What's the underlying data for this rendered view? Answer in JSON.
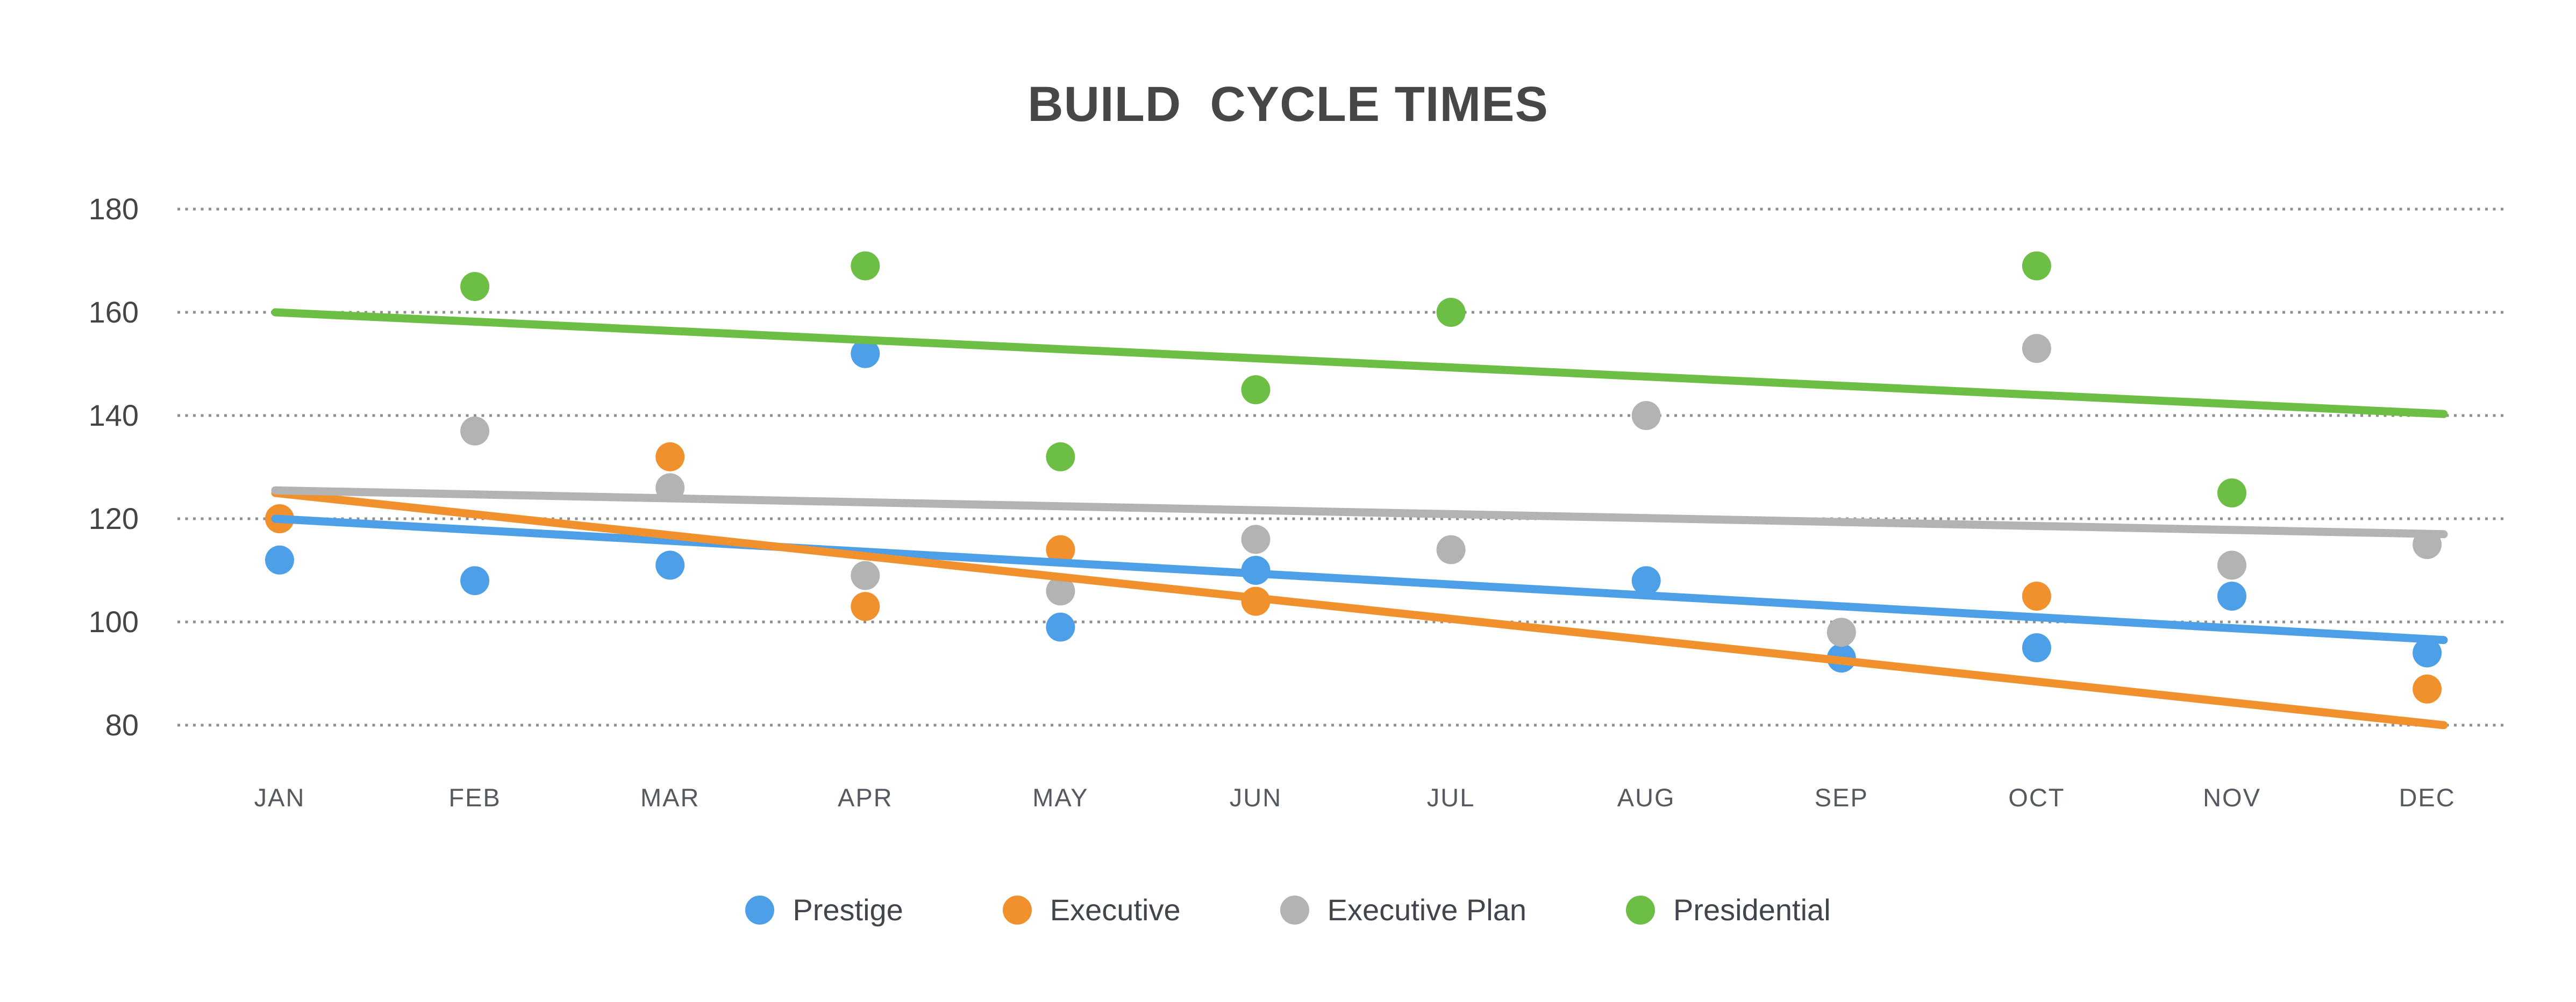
{
  "title": "BUILD  CYCLE TIMES",
  "chart_data": {
    "type": "scatter",
    "title": "BUILD  CYCLE TIMES",
    "xlabel": "",
    "ylabel": "",
    "x": [
      "JAN",
      "FEB",
      "MAR",
      "APR",
      "MAY",
      "JUN",
      "JUL",
      "AUG",
      "SEP",
      "OCT",
      "NOV",
      "DEC"
    ],
    "yticks": [
      180,
      160,
      140,
      120,
      100,
      80
    ],
    "ylim": [
      80,
      180
    ],
    "grid": "horizontal-dotted",
    "legend_position": "bottom",
    "series": [
      {
        "name": "Prestige",
        "color": "#4DA0E8",
        "points": [
          112,
          108,
          111,
          152,
          99,
          110,
          null,
          108,
          93,
          95,
          105,
          94
        ],
        "trendline": {
          "start": 120,
          "end": 96.5
        }
      },
      {
        "name": "Executive",
        "color": "#F0912D",
        "points": [
          120,
          null,
          132,
          103,
          114,
          104,
          null,
          null,
          null,
          105,
          null,
          87
        ],
        "trendline": {
          "start": 125,
          "end": 80
        }
      },
      {
        "name": "Executive Plan",
        "color": "#B3B3B3",
        "points": [
          null,
          137,
          126,
          109,
          106,
          116,
          114,
          140,
          98,
          153,
          111,
          115
        ],
        "trendline": {
          "start": 125.5,
          "end": 117
        }
      },
      {
        "name": "Presidential",
        "color": "#6CBE45",
        "points": [
          null,
          165,
          null,
          169,
          132,
          145,
          160,
          null,
          null,
          169,
          125,
          null
        ],
        "trendline": {
          "start": 160,
          "end": 140.3
        }
      }
    ],
    "gridline_color": "#8F8F8F"
  }
}
